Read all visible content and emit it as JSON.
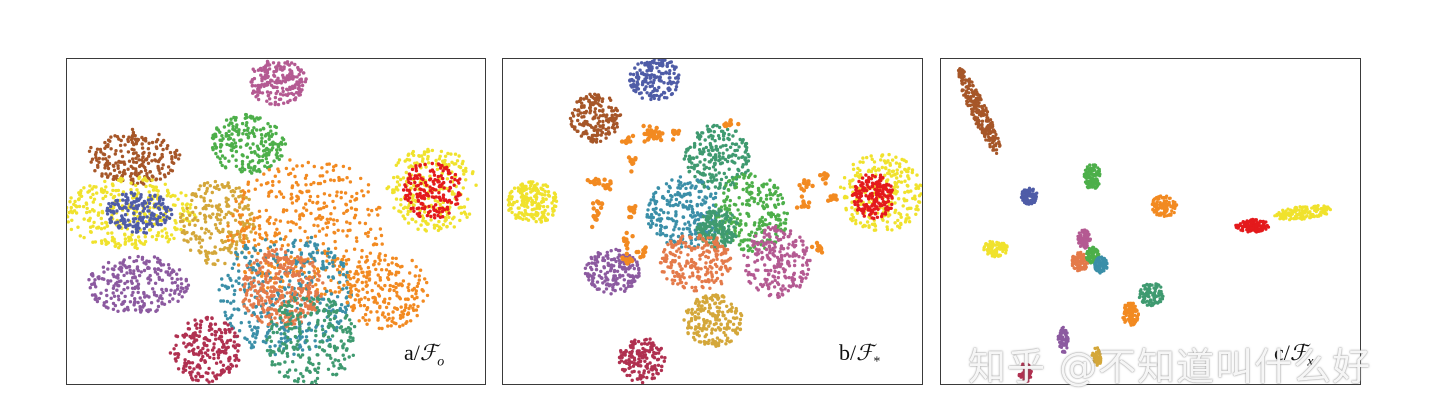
{
  "colors": {
    "red": "#e41a1c",
    "blue": "#4f5ca7",
    "green": "#4daf4a",
    "purple": "#8c5aa0",
    "orange": "#f28a21",
    "yellow": "#f0e22d",
    "brown": "#a65628",
    "pink": "#b45a92",
    "gold": "#d4a73a",
    "teal": "#3b8fa8",
    "salmon": "#e47a4a",
    "seagreen": "#3f9a70",
    "crimson": "#b03050"
  },
  "chart_data": [
    {
      "type": "scatter",
      "label_main": "a/",
      "label_script": "ℱ",
      "label_sub": "o",
      "clusters": [
        {
          "color": "pink",
          "cx": 0.5,
          "cy": 0.07,
          "rx": 0.07,
          "ry": 0.07,
          "n": 200
        },
        {
          "color": "green",
          "cx": 0.43,
          "cy": 0.26,
          "rx": 0.09,
          "ry": 0.09,
          "n": 220
        },
        {
          "color": "brown",
          "cx": 0.16,
          "cy": 0.3,
          "rx": 0.11,
          "ry": 0.085,
          "n": 220
        },
        {
          "color": "yellow",
          "cx": 0.15,
          "cy": 0.47,
          "rx": 0.16,
          "ry": 0.11,
          "n": 320
        },
        {
          "color": "blue",
          "cx": 0.17,
          "cy": 0.47,
          "rx": 0.08,
          "ry": 0.065,
          "n": 180
        },
        {
          "color": "yellow",
          "cx": 0.87,
          "cy": 0.4,
          "rx": 0.11,
          "ry": 0.13,
          "n": 260
        },
        {
          "color": "red",
          "cx": 0.87,
          "cy": 0.4,
          "rx": 0.07,
          "ry": 0.09,
          "n": 180
        },
        {
          "color": "gold",
          "cx": 0.36,
          "cy": 0.5,
          "rx": 0.09,
          "ry": 0.13,
          "n": 220
        },
        {
          "color": "purple",
          "cx": 0.17,
          "cy": 0.69,
          "rx": 0.12,
          "ry": 0.09,
          "n": 240
        },
        {
          "color": "orange",
          "cx": 0.57,
          "cy": 0.52,
          "rx": 0.19,
          "ry": 0.22,
          "n": 420
        },
        {
          "color": "teal",
          "cx": 0.52,
          "cy": 0.72,
          "rx": 0.16,
          "ry": 0.19,
          "n": 380
        },
        {
          "color": "salmon",
          "cx": 0.51,
          "cy": 0.7,
          "rx": 0.1,
          "ry": 0.12,
          "n": 320
        },
        {
          "color": "seagreen",
          "cx": 0.58,
          "cy": 0.86,
          "rx": 0.11,
          "ry": 0.14,
          "n": 240
        },
        {
          "color": "orange",
          "cx": 0.76,
          "cy": 0.71,
          "rx": 0.1,
          "ry": 0.12,
          "n": 200
        },
        {
          "color": "crimson",
          "cx": 0.33,
          "cy": 0.89,
          "rx": 0.085,
          "ry": 0.1,
          "n": 220
        }
      ]
    },
    {
      "type": "scatter",
      "label_main": "b/",
      "label_script": "ℱ",
      "label_sub": "*",
      "clusters": [
        {
          "color": "blue",
          "cx": 0.36,
          "cy": 0.06,
          "rx": 0.06,
          "ry": 0.07,
          "n": 180
        },
        {
          "color": "brown",
          "cx": 0.22,
          "cy": 0.18,
          "rx": 0.06,
          "ry": 0.075,
          "n": 180
        },
        {
          "color": "yellow",
          "cx": 0.07,
          "cy": 0.44,
          "rx": 0.06,
          "ry": 0.065,
          "n": 200
        },
        {
          "color": "yellow",
          "cx": 0.9,
          "cy": 0.41,
          "rx": 0.1,
          "ry": 0.12,
          "n": 260
        },
        {
          "color": "red",
          "cx": 0.88,
          "cy": 0.42,
          "rx": 0.05,
          "ry": 0.07,
          "n": 180
        },
        {
          "color": "seagreen",
          "cx": 0.51,
          "cy": 0.3,
          "rx": 0.08,
          "ry": 0.1,
          "n": 220
        },
        {
          "color": "teal",
          "cx": 0.43,
          "cy": 0.47,
          "rx": 0.09,
          "ry": 0.11,
          "n": 240
        },
        {
          "color": "green",
          "cx": 0.59,
          "cy": 0.47,
          "rx": 0.09,
          "ry": 0.12,
          "n": 240
        },
        {
          "color": "seagreen",
          "cx": 0.51,
          "cy": 0.52,
          "rx": 0.05,
          "ry": 0.06,
          "n": 160
        },
        {
          "color": "salmon",
          "cx": 0.46,
          "cy": 0.62,
          "rx": 0.09,
          "ry": 0.09,
          "n": 220
        },
        {
          "color": "pink",
          "cx": 0.65,
          "cy": 0.62,
          "rx": 0.08,
          "ry": 0.11,
          "n": 220
        },
        {
          "color": "purple",
          "cx": 0.26,
          "cy": 0.65,
          "rx": 0.065,
          "ry": 0.07,
          "n": 180
        },
        {
          "color": "gold",
          "cx": 0.5,
          "cy": 0.8,
          "rx": 0.07,
          "ry": 0.08,
          "n": 200
        },
        {
          "color": "crimson",
          "cx": 0.33,
          "cy": 0.92,
          "rx": 0.055,
          "ry": 0.07,
          "n": 160
        },
        {
          "color": "orange",
          "cx": 0.5,
          "cy": 0.33,
          "rx": 0.3,
          "ry": 0.28,
          "n": 0,
          "mini": true
        }
      ]
    },
    {
      "type": "scatter",
      "label_main": "c/",
      "label_script": "ℱ",
      "label_sub": "x",
      "clusters": [
        {
          "color": "brown",
          "cx": 0.09,
          "cy": 0.16,
          "rx": 0.02,
          "ry": 0.14,
          "n": 260,
          "tilt": -0.35
        },
        {
          "color": "green",
          "cx": 0.36,
          "cy": 0.36,
          "rx": 0.02,
          "ry": 0.04,
          "n": 120
        },
        {
          "color": "blue",
          "cx": 0.21,
          "cy": 0.42,
          "rx": 0.02,
          "ry": 0.025,
          "n": 90
        },
        {
          "color": "orange",
          "cx": 0.53,
          "cy": 0.45,
          "rx": 0.03,
          "ry": 0.035,
          "n": 110
        },
        {
          "color": "yellow",
          "cx": 0.13,
          "cy": 0.58,
          "rx": 0.03,
          "ry": 0.025,
          "n": 100
        },
        {
          "color": "red",
          "cx": 0.74,
          "cy": 0.51,
          "rx": 0.04,
          "ry": 0.02,
          "n": 120
        },
        {
          "color": "yellow",
          "cx": 0.86,
          "cy": 0.47,
          "rx": 0.07,
          "ry": 0.02,
          "n": 150,
          "tilt": -0.15
        },
        {
          "color": "pink",
          "cx": 0.34,
          "cy": 0.55,
          "rx": 0.015,
          "ry": 0.03,
          "n": 80
        },
        {
          "color": "salmon",
          "cx": 0.33,
          "cy": 0.62,
          "rx": 0.02,
          "ry": 0.03,
          "n": 100
        },
        {
          "color": "green",
          "cx": 0.36,
          "cy": 0.6,
          "rx": 0.015,
          "ry": 0.025,
          "n": 80
        },
        {
          "color": "teal",
          "cx": 0.38,
          "cy": 0.63,
          "rx": 0.015,
          "ry": 0.025,
          "n": 80
        },
        {
          "color": "seagreen",
          "cx": 0.5,
          "cy": 0.72,
          "rx": 0.03,
          "ry": 0.035,
          "n": 100
        },
        {
          "color": "orange",
          "cx": 0.45,
          "cy": 0.78,
          "rx": 0.02,
          "ry": 0.035,
          "n": 100
        },
        {
          "color": "purple",
          "cx": 0.29,
          "cy": 0.86,
          "rx": 0.012,
          "ry": 0.04,
          "n": 70
        },
        {
          "color": "crimson",
          "cx": 0.2,
          "cy": 0.96,
          "rx": 0.015,
          "ry": 0.03,
          "n": 60
        },
        {
          "color": "gold",
          "cx": 0.37,
          "cy": 0.91,
          "rx": 0.012,
          "ry": 0.03,
          "n": 50
        }
      ]
    }
  ],
  "watermark": "知乎 @不知道叫什么好"
}
